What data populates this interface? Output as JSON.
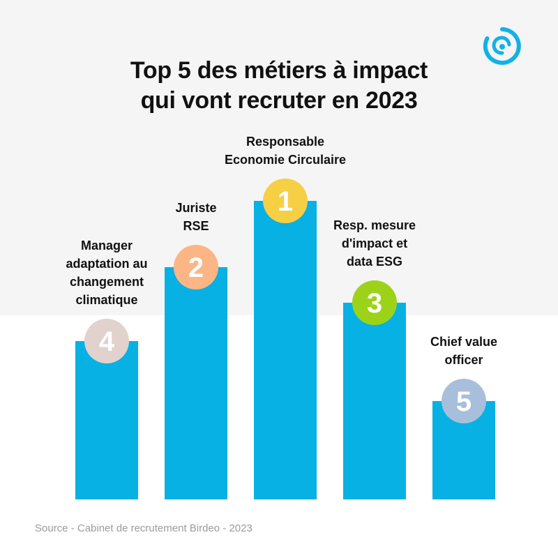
{
  "title": {
    "line1": "Top 5 des métiers à impact",
    "line2": "qui vont recruter en 2023"
  },
  "source": "Source - Cabinet de recrutement Birdeo - 2023",
  "logo_icon": "spiral-logo-icon",
  "colors": {
    "bar": "#07b1e4",
    "band": "#f5f5f5",
    "rank1": "#f6cf45",
    "rank2": "#fcb685",
    "rank3": "#9cd318",
    "rank4": "#e1d2cd",
    "rank5": "#a8bfdb",
    "text": "#111111",
    "logo": "#13b1e6"
  },
  "chart_data": {
    "type": "bar",
    "title": "Top 5 des métiers à impact qui vont recruter en 2023",
    "categories": [
      [
        "Manager",
        "adaptation au",
        "changement",
        "climatique"
      ],
      [
        "Juriste",
        "RSE"
      ],
      [
        "Responsable",
        "Economie Circulaire"
      ],
      [
        "Resp. mesure",
        "d'impact et",
        "data ESG"
      ],
      [
        "Chief value",
        "officer"
      ]
    ],
    "ranks": [
      "4",
      "2",
      "1",
      "3",
      "5"
    ],
    "values": [
      4,
      2,
      1,
      3,
      5
    ],
    "heights_relative": [
      227,
      333,
      428,
      282,
      141
    ],
    "xlabel": "",
    "ylabel": "",
    "grid": false,
    "legend": "none"
  }
}
